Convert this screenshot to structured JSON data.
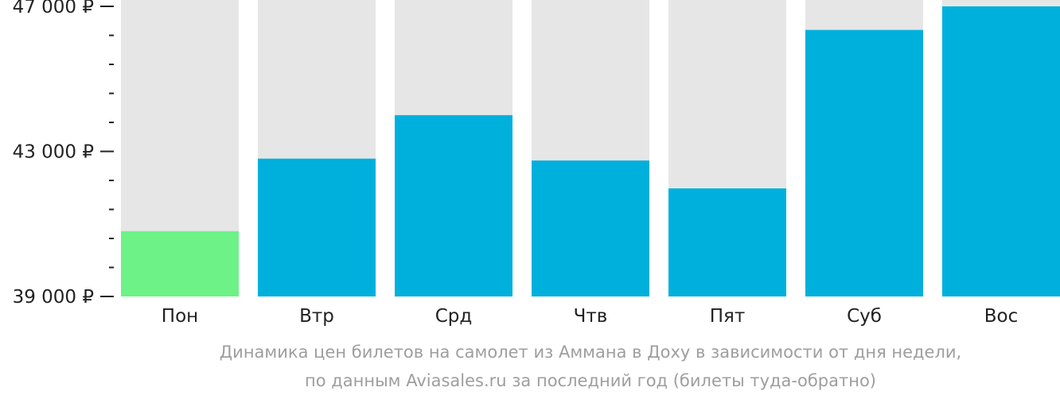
{
  "chart_data": {
    "type": "bar",
    "categories": [
      "Пон",
      "Втр",
      "Срд",
      "Чтв",
      "Пят",
      "Суб",
      "Вос"
    ],
    "values": [
      40800,
      42800,
      44000,
      42750,
      41980,
      46350,
      47000
    ],
    "ylim": [
      39000,
      47000
    ],
    "y_major_ticks": [
      39000,
      43000,
      47000
    ],
    "y_tick_labels": [
      "39 000 ₽",
      "43 000 ₽",
      "47 000 ₽"
    ],
    "grid": false,
    "highlight_index": 0,
    "colors": {
      "bar": "#00b0dc",
      "highlight": "#6cf286",
      "track": "#e6e6e6",
      "axis": "#222222",
      "caption": "#9e9e9e"
    }
  },
  "caption": {
    "line1": "Динамика цен билетов на самолет из Аммана в Доху в зависимости от дня недели,",
    "line2": "по данным Aviasales.ru за последний год (билеты туда-обратно)"
  }
}
